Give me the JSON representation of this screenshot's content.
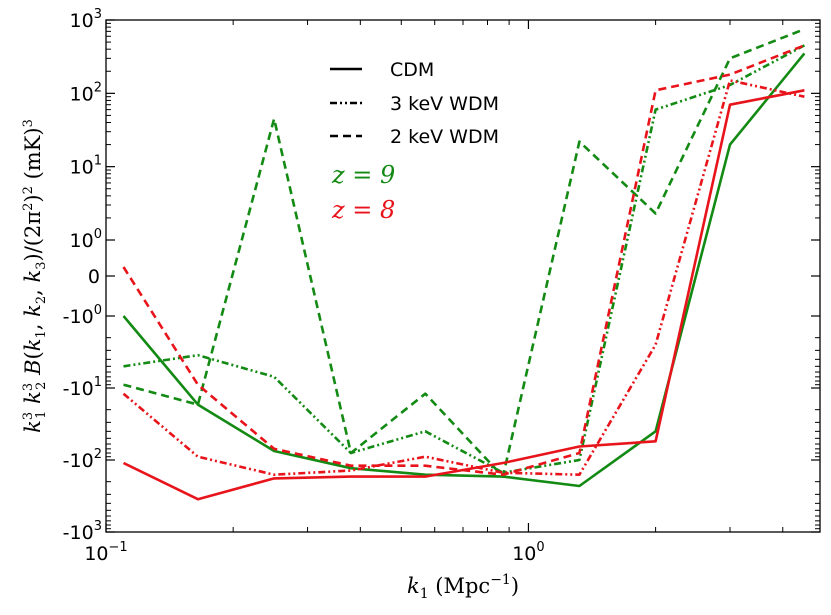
{
  "chart_data": {
    "type": "line",
    "title": "",
    "xlabel": "k1 (Mpc^-1)",
    "ylabel": "k1^3 k2^3 B(k1, k2, k3)/(2π^2)^2 (mK)^3",
    "x_scale": "log",
    "y_scale": "symlog",
    "xlim": [
      0.1,
      4.9
    ],
    "ylim": [
      -1000,
      1000
    ],
    "grid": false,
    "legend_position": "top-center",
    "x_ticks": [
      {
        "base": "10",
        "exp": "−1",
        "value": 0.1
      },
      {
        "base": "10",
        "exp": "0",
        "value": 1
      }
    ],
    "y_ticks": [
      {
        "base": "10",
        "exp": "3",
        "value": 1000
      },
      {
        "base": "10",
        "exp": "2",
        "value": 100
      },
      {
        "base": "10",
        "exp": "1",
        "value": 10
      },
      {
        "base": "10",
        "exp": "0",
        "value": 1
      },
      {
        "base": "0",
        "exp": "",
        "value": 0
      },
      {
        "base": "-10",
        "exp": "0",
        "value": -1
      },
      {
        "base": "-10",
        "exp": "1",
        "value": -10
      },
      {
        "base": "-10",
        "exp": "2",
        "value": -100
      },
      {
        "base": "-10",
        "exp": "3",
        "value": -1000
      }
    ],
    "legend": [
      {
        "label": "CDM",
        "dash": "solid"
      },
      {
        "label": "3 keV WDM",
        "dash": "dashdotdot"
      },
      {
        "label": "2 keV WDM",
        "dash": "dashed"
      }
    ],
    "annotations": [
      {
        "text": "z = 9",
        "color": "#138a13"
      },
      {
        "text": "z = 8",
        "color": "#e8141b"
      }
    ],
    "x": [
      0.11,
      0.165,
      0.25,
      0.38,
      0.57,
      0.87,
      1.32,
      2.0,
      3.0,
      4.5
    ],
    "series": [
      {
        "name": "CDM",
        "redshift": "z=9",
        "color": "#138a13",
        "dash": "solid",
        "values": [
          -1.0,
          -17,
          -75,
          -130,
          -160,
          -170,
          -230,
          -40,
          20,
          350
        ]
      },
      {
        "name": "3 keV WDM",
        "redshift": "z=9",
        "color": "#138a13",
        "dash": "dashdotdot",
        "values": [
          -5,
          -3.5,
          -7,
          -80,
          -40,
          -150,
          -100,
          60,
          130,
          450
        ]
      },
      {
        "name": "2 keV WDM",
        "redshift": "z=9",
        "color": "#138a13",
        "dash": "dashed",
        "values": [
          -9,
          -17,
          45,
          -80,
          -12,
          -170,
          22,
          2.3,
          300,
          750
        ]
      },
      {
        "name": "CDM",
        "redshift": "z=8",
        "color": "#e8141b",
        "dash": "solid",
        "values": [
          -110,
          -350,
          -180,
          -170,
          -170,
          -110,
          -65,
          -55,
          70,
          110
        ]
      },
      {
        "name": "3 keV WDM",
        "redshift": "z=8",
        "color": "#e8141b",
        "dash": "dashdotdot",
        "values": [
          -12,
          -90,
          -160,
          -140,
          -90,
          -150,
          -160,
          -2.5,
          150,
          90
        ]
      },
      {
        "name": "2 keV WDM",
        "redshift": "z=8",
        "color": "#e8141b",
        "dash": "dashed",
        "values": [
          0.25,
          -9,
          -70,
          -120,
          -120,
          -160,
          -80,
          110,
          180,
          450
        ]
      }
    ]
  }
}
